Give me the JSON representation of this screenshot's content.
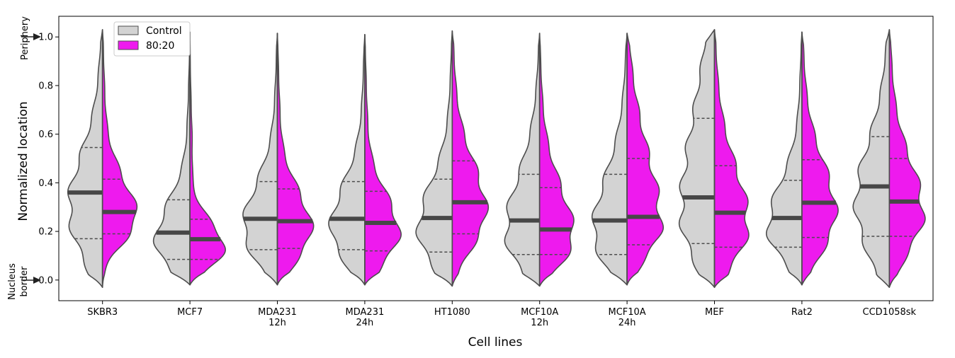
{
  "chart_data": {
    "type": "violin",
    "xlabel": "Cell lines",
    "ylabel": "Normalized location",
    "ylim": [
      -0.085,
      1.085
    ],
    "yticks": [
      "0.0",
      "0.2",
      "0.4",
      "0.6",
      "0.8",
      "1.0"
    ],
    "y_annotations": {
      "top": "Periphery",
      "bottom_line1": "Nucleus",
      "bottom_line2": "border"
    },
    "categories": [
      [
        "SKBR3"
      ],
      [
        "MCF7"
      ],
      [
        "MDA231",
        "12h"
      ],
      [
        "MDA231",
        "24h"
      ],
      [
        "HT1080"
      ],
      [
        "MCF10A",
        "12h"
      ],
      [
        "MCF10A",
        "24h"
      ],
      [
        "MEF"
      ],
      [
        "Rat2"
      ],
      [
        "CCD1058sk"
      ]
    ],
    "series": [
      {
        "name": "Control",
        "color": "#d3d3d3",
        "median": [
          0.36,
          0.195,
          0.252,
          0.252,
          0.255,
          0.245,
          0.245,
          0.34,
          0.255,
          0.385
        ],
        "q1": [
          0.17,
          0.085,
          0.125,
          0.125,
          0.115,
          0.105,
          0.105,
          0.15,
          0.135,
          0.18
        ],
        "q3": [
          0.545,
          0.33,
          0.405,
          0.405,
          0.415,
          0.435,
          0.435,
          0.665,
          0.41,
          0.59
        ],
        "max": [
          1.03,
          1.02,
          1.015,
          1.01,
          1.025,
          1.015,
          1.015,
          1.03,
          1.02,
          1.03
        ],
        "min": [
          -0.03,
          -0.02,
          -0.02,
          -0.02,
          -0.025,
          -0.025,
          -0.02,
          -0.03,
          -0.02,
          -0.03
        ]
      },
      {
        "name": "80:20",
        "color": "#ee1aee",
        "median": [
          0.28,
          0.168,
          0.242,
          0.235,
          0.32,
          0.208,
          0.26,
          0.277,
          0.318,
          0.323
        ],
        "q1": [
          0.19,
          0.085,
          0.13,
          0.12,
          0.19,
          0.105,
          0.145,
          0.135,
          0.175,
          0.18
        ],
        "q3": [
          0.415,
          0.25,
          0.375,
          0.365,
          0.49,
          0.38,
          0.5,
          0.47,
          0.495,
          0.5
        ],
        "max": [
          1.03,
          1.02,
          1.015,
          1.01,
          1.025,
          1.015,
          1.015,
          1.03,
          1.02,
          1.03
        ],
        "min": [
          -0.03,
          -0.02,
          -0.02,
          -0.02,
          -0.025,
          -0.025,
          -0.02,
          -0.03,
          -0.02,
          -0.03
        ]
      }
    ],
    "legend": {
      "position": "top-left",
      "entries": [
        "Control",
        "80:20"
      ]
    },
    "grid": false
  },
  "colors": {
    "outline": "#4d4d4d",
    "median_bar": "#474747"
  }
}
